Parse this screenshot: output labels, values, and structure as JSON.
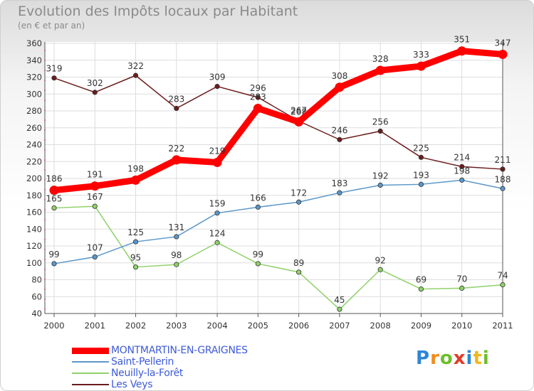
{
  "chart_data": {
    "type": "line",
    "title": "Evolution des Impôts locaux par Habitant",
    "subtitle": "(en € et par an)",
    "x": [
      "2000",
      "2001",
      "2002",
      "2003",
      "2004",
      "2005",
      "2006",
      "2007",
      "2008",
      "2009",
      "2010",
      "2011"
    ],
    "ylim": [
      40,
      360
    ],
    "yticks": [
      40,
      60,
      80,
      100,
      120,
      140,
      160,
      180,
      200,
      220,
      240,
      260,
      280,
      300,
      320,
      340,
      360
    ],
    "grid": true,
    "legend_position": "bottom-left",
    "series": [
      {
        "name": "Les Veys",
        "color": "#6b1c1c",
        "values": [
          319,
          302,
          322,
          283,
          309,
          296,
          268,
          246,
          256,
          225,
          214,
          211
        ]
      },
      {
        "name": "Neuilly-la-Forêt",
        "color": "#8fd16a",
        "values": [
          165,
          167,
          95,
          98,
          124,
          99,
          89,
          45,
          92,
          69,
          70,
          74
        ]
      },
      {
        "name": "Saint-Pellerin",
        "color": "#5b97c9",
        "values": [
          99,
          107,
          125,
          131,
          159,
          166,
          172,
          183,
          192,
          193,
          198,
          188
        ]
      },
      {
        "name": "MONTMARTIN-EN-GRAIGNES",
        "color": "#ff0000",
        "values": [
          186,
          191,
          198,
          222,
          219,
          283,
          267,
          308,
          328,
          333,
          351,
          347
        ]
      }
    ]
  },
  "legend": {
    "items": [
      {
        "label": "MONTMARTIN-EN-GRAIGNES",
        "color": "#ff0000"
      },
      {
        "label": "Saint-Pellerin",
        "color": "#5b97c9"
      },
      {
        "label": "Neuilly-la-Forêt",
        "color": "#8fd16a"
      },
      {
        "label": "Les Veys",
        "color": "#6b1c1c"
      }
    ]
  },
  "logo": {
    "text": "Proxiti"
  }
}
